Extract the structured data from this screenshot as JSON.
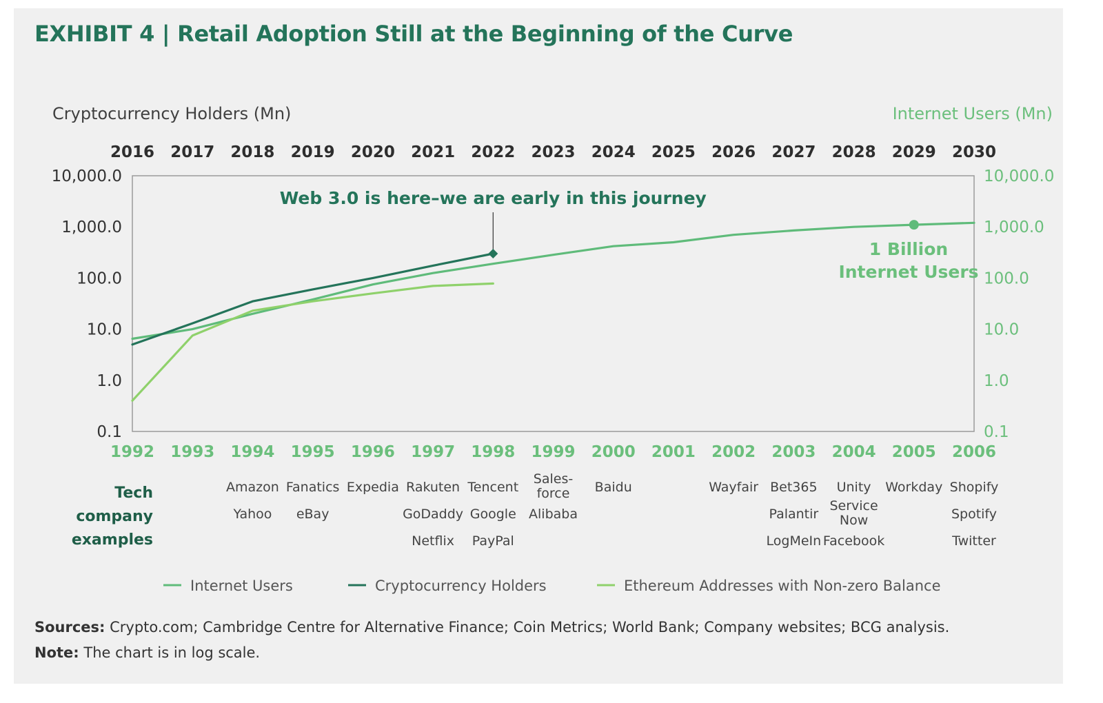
{
  "title": "EXHIBIT 4 | Retail Adoption Still at the Beginning of the Curve",
  "colors": {
    "title": "#24745a",
    "internet_users": "#5fbb7a",
    "crypto_holders": "#24745a",
    "ethereum": "#8fd16b",
    "panel_background": "#f0f0f0"
  },
  "chart_data": {
    "type": "line",
    "scale": "log",
    "left_axis_label": "Cryptocurrency Holders (Mn)",
    "right_axis_label": "Internet Users (Mn)",
    "top_axis_years": [
      "2016",
      "2017",
      "2018",
      "2019",
      "2020",
      "2021",
      "2022",
      "2023",
      "2024",
      "2025",
      "2026",
      "2027",
      "2028",
      "2029",
      "2030"
    ],
    "bottom_axis_years": [
      "1992",
      "1993",
      "1994",
      "1995",
      "1996",
      "1997",
      "1998",
      "1999",
      "2000",
      "2001",
      "2002",
      "2003",
      "2004",
      "2005",
      "2006"
    ],
    "y_ticks": [
      "0.1",
      "1.0",
      "10.0",
      "100.0",
      "1,000.0",
      "10,000.0"
    ],
    "y_tick_values": [
      0.1,
      1,
      10,
      100,
      1000,
      10000
    ],
    "ylim": [
      0.1,
      10000
    ],
    "series": [
      {
        "name": "Internet Users",
        "axis": "bottom/right",
        "x": [
          1992,
          1993,
          1994,
          1995,
          1996,
          1997,
          1998,
          1999,
          2000,
          2001,
          2002,
          2003,
          2004,
          2005,
          2006
        ],
        "values": [
          6.5,
          10,
          20,
          38,
          75,
          125,
          190,
          285,
          420,
          500,
          700,
          850,
          1000,
          1100,
          1200
        ]
      },
      {
        "name": "Cryptocurrency Holders",
        "axis": "top/left",
        "x": [
          2016,
          2017,
          2018,
          2019,
          2020,
          2021,
          2022
        ],
        "values": [
          5,
          13,
          35,
          60,
          100,
          175,
          300
        ]
      },
      {
        "name": "Ethereum Addresses with Non-zero Balance",
        "axis": "top/left",
        "x": [
          2016,
          2017,
          2018,
          2019,
          2020,
          2021,
          2022
        ],
        "values": [
          0.4,
          7.5,
          23,
          35,
          50,
          70,
          78
        ]
      }
    ],
    "annotations": [
      {
        "text": "Web 3.0 is here–we are early in this journey",
        "x": 2022,
        "axis": "top",
        "value": 300
      },
      {
        "lines": [
          "1 Billion",
          "Internet Users"
        ],
        "x": 2005,
        "axis": "bottom",
        "value": 1100
      }
    ],
    "legend": [
      "Internet Users",
      "Cryptocurrency Holders",
      "Ethereum Addresses with Non-zero Balance"
    ],
    "legend_position": "bottom"
  },
  "tech_companies": {
    "label": [
      "Tech",
      "company",
      "examples"
    ],
    "columns": [
      {
        "year": "1994",
        "rows": [
          [
            "Amazon"
          ],
          [
            "Yahoo"
          ],
          []
        ]
      },
      {
        "year": "1995",
        "rows": [
          [
            "Fanatics"
          ],
          [
            "eBay"
          ],
          []
        ]
      },
      {
        "year": "1996",
        "rows": [
          [
            "Expedia"
          ],
          [],
          []
        ]
      },
      {
        "year": "1997",
        "rows": [
          [
            "Rakuten"
          ],
          [
            "GoDaddy"
          ],
          [
            "Netflix"
          ]
        ]
      },
      {
        "year": "1998",
        "rows": [
          [
            "Tencent"
          ],
          [
            "Google"
          ],
          [
            "PayPal"
          ]
        ]
      },
      {
        "year": "1999",
        "rows": [
          [
            "Sales-",
            "force"
          ],
          [
            "Alibaba"
          ],
          []
        ]
      },
      {
        "year": "2000",
        "rows": [
          [
            "Baidu"
          ],
          [],
          []
        ]
      },
      {
        "year": "2002",
        "rows": [
          [
            "Wayfair"
          ],
          [],
          []
        ]
      },
      {
        "year": "2003",
        "rows": [
          [
            "Bet365"
          ],
          [
            "Palantir"
          ],
          [
            "LogMeIn"
          ]
        ]
      },
      {
        "year": "2004",
        "rows": [
          [
            "Unity"
          ],
          [
            "Service",
            "Now"
          ],
          [
            "Facebook"
          ]
        ]
      },
      {
        "year": "2005",
        "rows": [
          [
            "Workday"
          ],
          [],
          []
        ]
      },
      {
        "year": "2006",
        "rows": [
          [
            "Shopify"
          ],
          [
            "Spotify"
          ],
          [
            "Twitter"
          ]
        ]
      }
    ]
  },
  "footer": {
    "sources_label": "Sources:",
    "sources_text": " Crypto.com; Cambridge Centre for Alternative Finance; Coin Metrics; World Bank; Company websites; BCG analysis.",
    "note_label": "Note:",
    "note_text": " The chart is in log scale."
  }
}
